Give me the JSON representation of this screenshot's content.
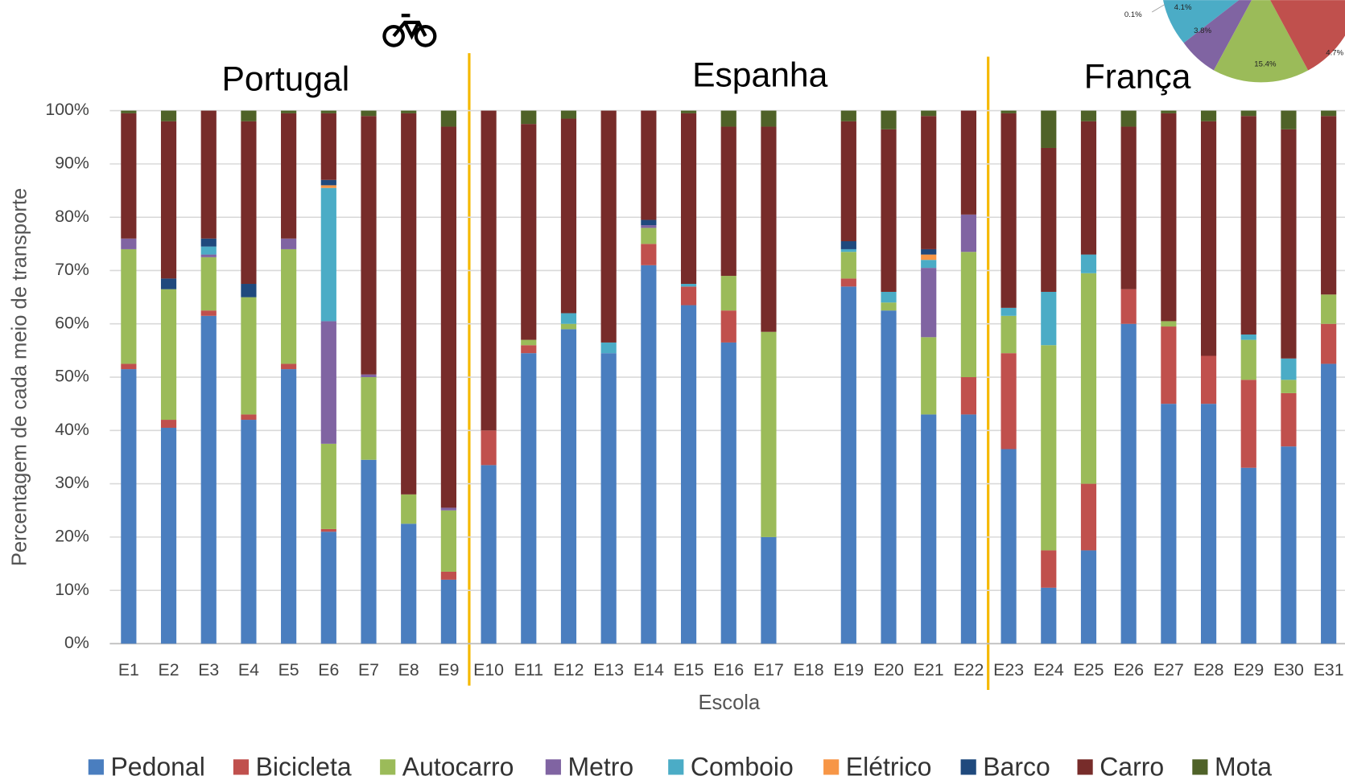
{
  "chart_data": {
    "type": "bar",
    "stacked": true,
    "xlabel": "Escola",
    "ylabel": "Percentagem de cada meio de transporte",
    "annotations": [
      "Portugal",
      "Espanha",
      "França"
    ],
    "inset_labels": [
      "4.1%",
      "0.1%",
      "3.8%",
      "15.4%",
      "4.7%"
    ],
    "ylim": [
      0,
      100
    ],
    "yticks": [
      {
        "value": 0,
        "label": "0%"
      },
      {
        "value": 10,
        "label": "10%"
      },
      {
        "value": 20,
        "label": "20%"
      },
      {
        "value": 30,
        "label": "30%"
      },
      {
        "value": 40,
        "label": "40%"
      },
      {
        "value": 50,
        "label": "50%"
      },
      {
        "value": 60,
        "label": "60%"
      },
      {
        "value": 70,
        "label": "70%"
      },
      {
        "value": 80,
        "label": "80%"
      },
      {
        "value": 90,
        "label": "90%"
      },
      {
        "value": 100,
        "label": "100%"
      }
    ],
    "grid": true,
    "legend": "bottom",
    "categories": [
      "E1",
      "E2",
      "E3",
      "E4",
      "E5",
      "E6",
      "E7",
      "E8",
      "E9",
      "E10",
      "E11",
      "E12",
      "E13",
      "E14",
      "E15",
      "E16",
      "E17",
      "E18",
      "E19",
      "E20",
      "E21",
      "E22",
      "E23",
      "E24",
      "E25",
      "E26",
      "E27",
      "E28",
      "E29",
      "E30",
      "E31"
    ],
    "series": [
      {
        "name": "Pedonal",
        "color": "#4a7ebf",
        "values": [
          51.5,
          40.5,
          61.5,
          42,
          51.5,
          21,
          34.5,
          22.5,
          12,
          33.5,
          54.5,
          59,
          54.5,
          71,
          63.5,
          56.5,
          20,
          0,
          67,
          62.5,
          43,
          43,
          36.5,
          10.5,
          17.5,
          60,
          45,
          45,
          33,
          37,
          52.5
        ]
      },
      {
        "name": "Bicicleta",
        "color": "#c0504d",
        "values": [
          1,
          1.5,
          1,
          1,
          1,
          0.5,
          0,
          0,
          1.5,
          6.5,
          1.5,
          0,
          0,
          4,
          3.5,
          6,
          0,
          0,
          1.5,
          0,
          0,
          7,
          18,
          7,
          12.5,
          6.5,
          14.5,
          9,
          16.5,
          10,
          7.5
        ]
      },
      {
        "name": "Autocarro",
        "color": "#9bbb59",
        "values": [
          21.5,
          24.5,
          10,
          22,
          21.5,
          16,
          15.5,
          5.5,
          11.5,
          0,
          1,
          1,
          0,
          3,
          0,
          6.5,
          38.5,
          0,
          5,
          1.5,
          14.5,
          23.5,
          7,
          38.5,
          39.5,
          0,
          1,
          0,
          7.5,
          2.5,
          5.5
        ]
      },
      {
        "name": "Metro",
        "color": "#8064a2",
        "values": [
          2,
          0,
          0.5,
          0,
          2,
          23,
          0.5,
          0,
          0.5,
          0,
          0,
          0,
          0,
          0.5,
          0,
          0,
          0,
          0,
          0,
          0,
          13,
          7,
          0,
          0,
          0,
          0,
          0,
          0,
          0,
          0,
          0
        ]
      },
      {
        "name": "Comboio",
        "color": "#4bacc6",
        "values": [
          0,
          0,
          1.5,
          0,
          0,
          25,
          0,
          0,
          0,
          0,
          0,
          2,
          2,
          0,
          0.5,
          0,
          0,
          0,
          0.5,
          2,
          1.5,
          0,
          1.5,
          10,
          3.5,
          0,
          0,
          0,
          1,
          4,
          0
        ]
      },
      {
        "name": "Elétrico",
        "color": "#f79646",
        "values": [
          0,
          0,
          0,
          0,
          0,
          0.5,
          0,
          0,
          0,
          0,
          0,
          0,
          0,
          0,
          0,
          0,
          0,
          0,
          0,
          0,
          1,
          0,
          0,
          0,
          0,
          0,
          0,
          0,
          0,
          0,
          0
        ]
      },
      {
        "name": "Barco",
        "color": "#1f497d",
        "values": [
          0,
          2,
          1.5,
          2.5,
          0,
          1,
          0,
          0,
          0,
          0,
          0,
          0,
          0,
          1,
          0,
          0,
          0,
          0,
          1.5,
          0,
          1,
          0,
          0,
          0,
          0,
          0,
          0,
          0,
          0,
          0,
          0
        ]
      },
      {
        "name": "Carro",
        "color": "#772c2a",
        "values": [
          23.5,
          29.5,
          24,
          30.5,
          23.5,
          12.5,
          48.5,
          71.5,
          71.5,
          60,
          40.5,
          36.5,
          43.5,
          20.5,
          32,
          28,
          38.5,
          0,
          22.5,
          30.5,
          25,
          19.5,
          36.5,
          27,
          25,
          30.5,
          39,
          44,
          41,
          43,
          33.5
        ]
      },
      {
        "name": "Mota",
        "color": "#4f6228",
        "values": [
          0.5,
          2,
          0,
          2,
          0.5,
          0.5,
          1,
          0.5,
          3,
          0,
          2.5,
          1.5,
          0,
          0,
          0.5,
          3,
          3,
          0,
          2,
          3.5,
          1,
          0,
          0.5,
          7,
          2,
          3,
          0.5,
          2,
          1,
          3.5,
          1
        ]
      }
    ]
  }
}
